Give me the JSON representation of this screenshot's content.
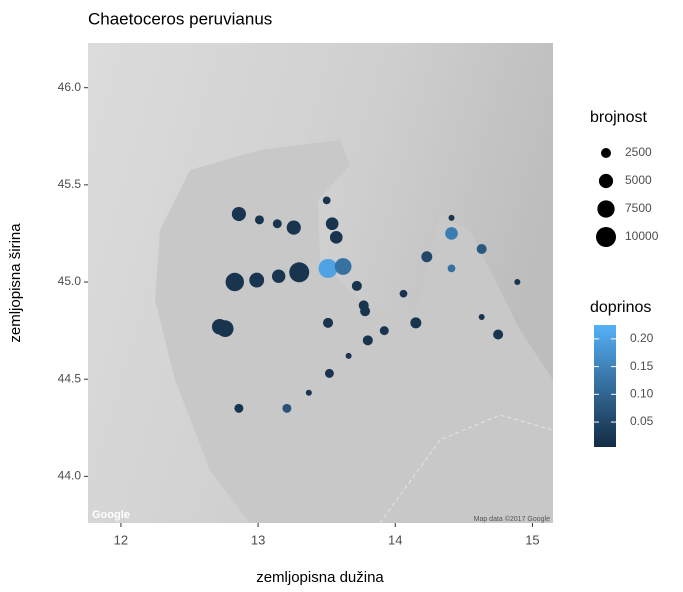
{
  "chart_data": {
    "type": "scatter",
    "title": "Chaetoceros peruvianus",
    "xlabel": "zemljopisna dužina",
    "ylabel": "zemljopisna širina",
    "x": [
      12.86,
      13.01,
      13.14,
      13.26,
      13.5,
      13.54,
      13.57,
      12.83,
      12.99,
      13.15,
      13.3,
      13.51,
      13.62,
      13.72,
      13.77,
      13.78,
      13.51,
      12.72,
      12.76,
      13.92,
      13.8,
      13.66,
      13.52,
      13.37,
      12.86,
      13.21,
      14.06,
      14.15,
      14.23,
      14.41,
      14.41,
      14.41,
      14.63,
      14.63,
      14.75,
      14.89
    ],
    "y": [
      45.35,
      45.32,
      45.3,
      45.28,
      45.42,
      45.3,
      45.23,
      45.0,
      45.01,
      45.03,
      45.05,
      45.07,
      45.08,
      44.98,
      44.88,
      44.85,
      44.79,
      44.77,
      44.76,
      44.75,
      44.7,
      44.62,
      44.53,
      44.43,
      44.35,
      44.35,
      44.94,
      44.79,
      45.13,
      45.25,
      45.33,
      45.07,
      45.17,
      44.82,
      44.73,
      45.0
    ],
    "sizes": [
      5000,
      2000,
      2000,
      5000,
      1500,
      4000,
      4000,
      8500,
      5500,
      4500,
      10000,
      9000,
      7000,
      2500,
      2500,
      2500,
      2500,
      6000,
      7000,
      2000,
      2500,
      900,
      2000,
      900,
      2000,
      2000,
      1500,
      3000,
      3000,
      4000,
      900,
      1500,
      2500,
      900,
      2500,
      900
    ],
    "contributions": [
      0.02,
      0.02,
      0.02,
      0.02,
      0.02,
      0.02,
      0.02,
      0.02,
      0.02,
      0.02,
      0.02,
      0.2,
      0.12,
      0.02,
      0.02,
      0.02,
      0.02,
      0.02,
      0.02,
      0.02,
      0.02,
      0.02,
      0.02,
      0.02,
      0.02,
      0.07,
      0.02,
      0.02,
      0.05,
      0.14,
      0.02,
      0.12,
      0.08,
      0.02,
      0.02,
      0.02
    ],
    "xlim": [
      11.76,
      15.15
    ],
    "ylim": [
      43.76,
      46.23
    ],
    "xticks": [
      12,
      13,
      14,
      15
    ],
    "yticks": [
      {
        "value": 44,
        "label": "44.0"
      },
      {
        "value": 44.5,
        "label": "44.5"
      },
      {
        "value": 45,
        "label": "45.0"
      },
      {
        "value": 45.5,
        "label": "45.5"
      },
      {
        "value": 46,
        "label": "46.0"
      }
    ],
    "size_legend": {
      "title": "brojnost",
      "values": [
        2500,
        5000,
        7500,
        10000
      ]
    },
    "color_legend": {
      "title": "doprinos",
      "lim": [
        0.005,
        0.225
      ],
      "colors": [
        "#132B43",
        "#56B1F7"
      ],
      "ticks": [
        0.05,
        {
          "value": 0.1,
          "label": "0.10"
        },
        0.15,
        {
          "value": 0.2,
          "label": "0.20"
        }
      ]
    },
    "credits": [
      "Google",
      "Map data ©2017 Google"
    ]
  }
}
